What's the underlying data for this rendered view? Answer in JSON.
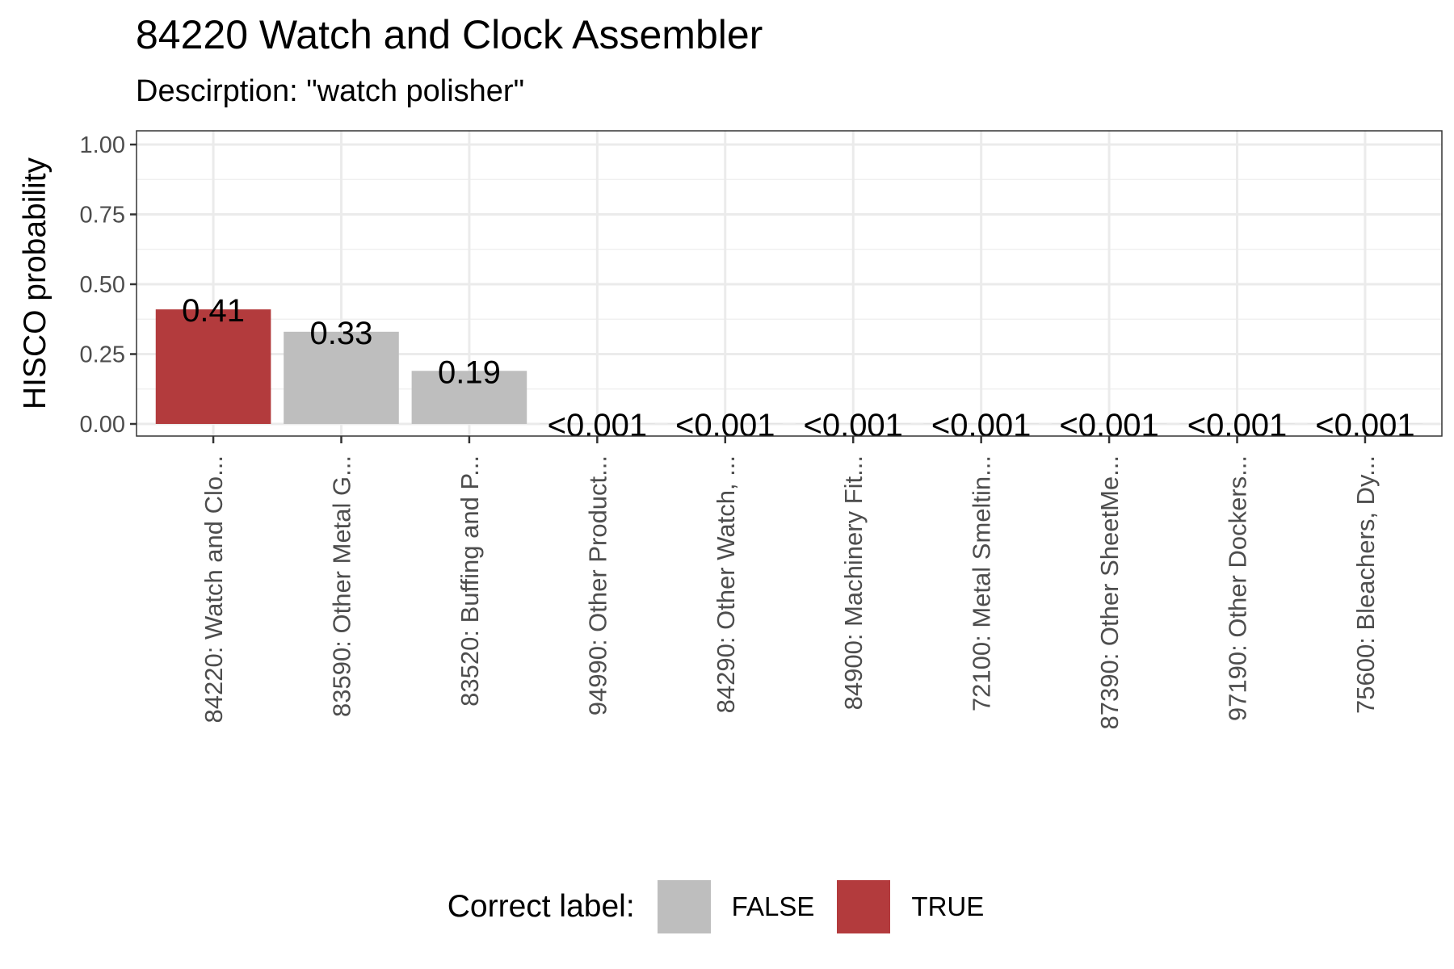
{
  "chart_data": {
    "type": "bar",
    "title": "84220 Watch and Clock Assembler",
    "subtitle": "Descirption: \"watch polisher\"",
    "ylabel": "HISCO probability",
    "xlabel": "",
    "ylim": [
      0,
      1
    ],
    "y_ticks": [
      "0.00",
      "0.25",
      "0.50",
      "0.75",
      "1.00"
    ],
    "grid": true,
    "categories": [
      "84220: Watch and Clo...",
      "83590: Other Metal G...",
      "83520: Buffing and P...",
      "94990: Other Product...",
      "84290: Other Watch, ...",
      "84900: Machinery Fit...",
      "72100: Metal Smeltin...",
      "87390: Other SheetMe...",
      "97190: Other Dockers...",
      "75600: Bleachers, Dy..."
    ],
    "values": [
      0.41,
      0.33,
      0.19,
      0.0005,
      0.0005,
      0.0005,
      0.0005,
      0.0005,
      0.0005,
      0.0005
    ],
    "data_labels": [
      "0.41",
      "0.33",
      "0.19",
      "<0.001",
      "<0.001",
      "<0.001",
      "<0.001",
      "<0.001",
      "<0.001",
      "<0.001"
    ],
    "correct": [
      true,
      false,
      false,
      false,
      false,
      false,
      false,
      false,
      false,
      false
    ],
    "legend": {
      "title": "Correct label:",
      "position": "bottom",
      "entries": [
        {
          "label": "FALSE",
          "color": "#bebebe"
        },
        {
          "label": "TRUE",
          "color": "#b33b3d"
        }
      ]
    }
  }
}
